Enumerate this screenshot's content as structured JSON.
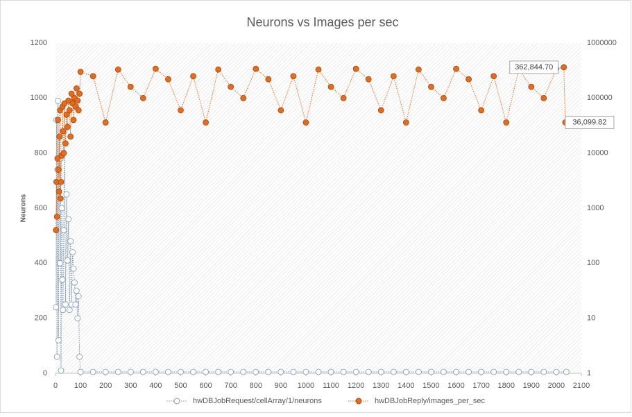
{
  "chart_data": {
    "type": "line",
    "title": "Neurons vs Images per sec",
    "y_label": "Neurons",
    "xlim": [
      0,
      2100
    ],
    "xticks": [
      0,
      100,
      200,
      300,
      400,
      500,
      600,
      700,
      800,
      900,
      1000,
      1100,
      1200,
      1300,
      1400,
      1500,
      1600,
      1700,
      1800,
      1900,
      2000,
      2100
    ],
    "ylim": [
      0,
      1200
    ],
    "yticks": [
      0,
      200,
      400,
      600,
      800,
      1000,
      1200
    ],
    "y2lim": [
      1,
      1000000
    ],
    "y2ticks": [
      1,
      10,
      100,
      1000,
      10000,
      100000,
      1000000
    ],
    "y2_log": true,
    "series": [
      {
        "name": "hwDBJobRequest/cellArray/1/neurons",
        "color": "#7f97b0",
        "x": [
          2,
          4,
          6,
          8,
          10,
          12,
          14,
          16,
          18,
          20,
          22,
          25,
          28,
          30,
          33,
          36,
          40,
          44,
          48,
          52,
          56,
          60,
          64,
          68,
          72,
          76,
          80,
          84,
          88,
          92,
          96,
          100,
          150,
          200,
          250,
          300,
          350,
          400,
          450,
          500,
          550,
          600,
          650,
          700,
          750,
          800,
          850,
          900,
          950,
          1000,
          1050,
          1100,
          1150,
          1200,
          1250,
          1300,
          1350,
          1400,
          1450,
          1500,
          1550,
          1600,
          1650,
          1700,
          1750,
          1800,
          1850,
          1900,
          1950,
          2000,
          2040
        ],
        "values": [
          240,
          920,
          60,
          740,
          990,
          120,
          700,
          860,
          400,
          780,
          10,
          600,
          340,
          230,
          520,
          880,
          250,
          650,
          410,
          560,
          230,
          480,
          250,
          440,
          380,
          330,
          250,
          300,
          200,
          280,
          60,
          5,
          5,
          5,
          5,
          5,
          5,
          5,
          5,
          5,
          5,
          5,
          5,
          5,
          5,
          5,
          5,
          5,
          5,
          5,
          5,
          5,
          5,
          5,
          5,
          5,
          5,
          5,
          5,
          5,
          5,
          5,
          5,
          5,
          5,
          5,
          5,
          5,
          5,
          5,
          5
        ]
      },
      {
        "name": "hwDBJobReply/images_per_sec",
        "color": "#e46c1f",
        "axis": "y2",
        "x": [
          2,
          4,
          6,
          8,
          10,
          12,
          14,
          16,
          18,
          20,
          22,
          25,
          28,
          30,
          33,
          36,
          40,
          44,
          48,
          52,
          56,
          60,
          64,
          68,
          72,
          76,
          80,
          84,
          88,
          92,
          96,
          100,
          150,
          200,
          250,
          300,
          350,
          400,
          450,
          500,
          550,
          600,
          650,
          700,
          750,
          800,
          850,
          900,
          950,
          1000,
          1050,
          1100,
          1150,
          1200,
          1250,
          1300,
          1350,
          1400,
          1450,
          1500,
          1550,
          1600,
          1650,
          1700,
          1750,
          1800,
          1850,
          1900,
          1950,
          2000,
          2030,
          2036
        ],
        "values": [
          400,
          3000,
          700,
          8000,
          40000,
          5000,
          2000,
          20000,
          60000,
          1500,
          3000,
          9000,
          70000,
          25000,
          10000,
          80000,
          15000,
          50000,
          30000,
          90000,
          60000,
          20000,
          120000,
          80000,
          40000,
          100000,
          70000,
          150000,
          90000,
          60000,
          120000,
          300000,
          250000,
          36000,
          330000,
          160000,
          100000,
          340000,
          220000,
          60000,
          250000,
          36000,
          330000,
          160000,
          100000,
          340000,
          220000,
          60000,
          250000,
          36000,
          330000,
          160000,
          100000,
          340000,
          220000,
          60000,
          250000,
          36000,
          330000,
          160000,
          100000,
          340000,
          220000,
          60000,
          250000,
          36000,
          330000,
          160000,
          100000,
          340000,
          362844.7,
          36099.82
        ]
      }
    ],
    "annotations": [
      {
        "x": 2030,
        "y": 362844.7,
        "text": "362,844.70"
      },
      {
        "x": 2036,
        "y": 36099.82,
        "text": "36,099.82"
      }
    ],
    "legend": "bottom"
  }
}
